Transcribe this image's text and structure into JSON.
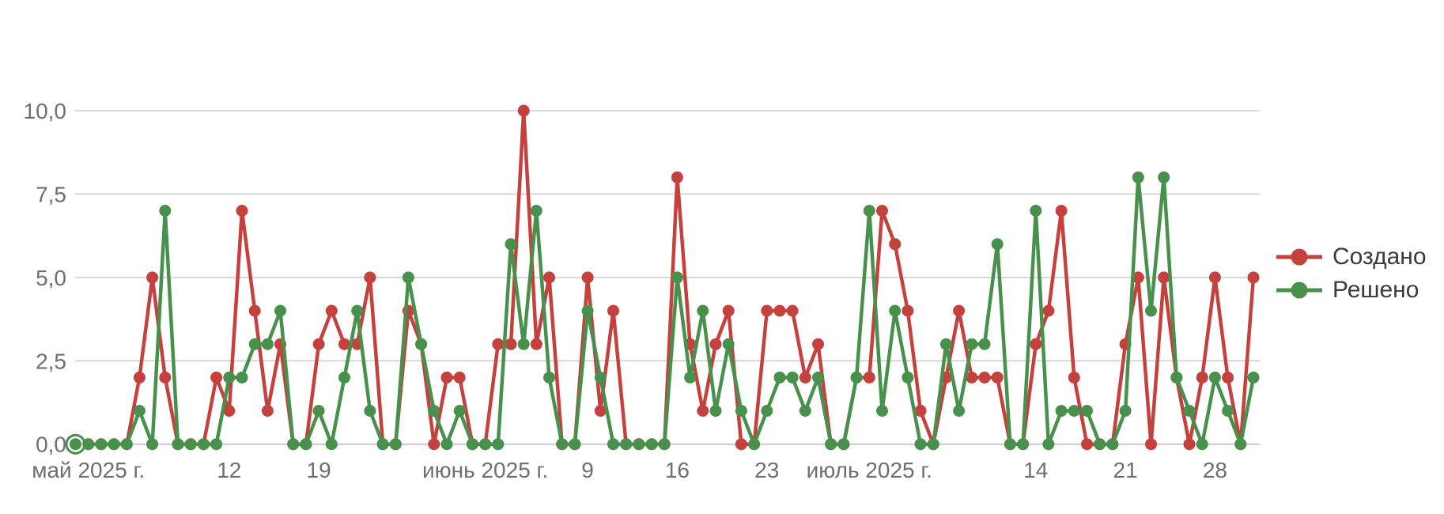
{
  "chart_data": {
    "type": "line",
    "title": "",
    "xlabel": "",
    "ylabel": "",
    "ylim": [
      0,
      10
    ],
    "grid": true,
    "legend_position": "right",
    "locale": "ru",
    "x_frequency": "daily",
    "x_start": "2025-04-30",
    "x_end": "2025-07-31",
    "dates": [
      "2025-04-30",
      "2025-05-01",
      "2025-05-02",
      "2025-05-03",
      "2025-05-04",
      "2025-05-05",
      "2025-05-06",
      "2025-05-07",
      "2025-05-08",
      "2025-05-09",
      "2025-05-10",
      "2025-05-11",
      "2025-05-12",
      "2025-05-13",
      "2025-05-14",
      "2025-05-15",
      "2025-05-16",
      "2025-05-17",
      "2025-05-18",
      "2025-05-19",
      "2025-05-20",
      "2025-05-21",
      "2025-05-22",
      "2025-05-23",
      "2025-05-24",
      "2025-05-25",
      "2025-05-26",
      "2025-05-27",
      "2025-05-28",
      "2025-05-29",
      "2025-05-30",
      "2025-05-31",
      "2025-06-01",
      "2025-06-02",
      "2025-06-03",
      "2025-06-04",
      "2025-06-05",
      "2025-06-06",
      "2025-06-07",
      "2025-06-08",
      "2025-06-09",
      "2025-06-10",
      "2025-06-11",
      "2025-06-12",
      "2025-06-13",
      "2025-06-14",
      "2025-06-15",
      "2025-06-16",
      "2025-06-17",
      "2025-06-18",
      "2025-06-19",
      "2025-06-20",
      "2025-06-21",
      "2025-06-22",
      "2025-06-23",
      "2025-06-24",
      "2025-06-25",
      "2025-06-26",
      "2025-06-27",
      "2025-06-28",
      "2025-06-29",
      "2025-06-30",
      "2025-07-01",
      "2025-07-02",
      "2025-07-03",
      "2025-07-04",
      "2025-07-05",
      "2025-07-06",
      "2025-07-07",
      "2025-07-08",
      "2025-07-09",
      "2025-07-10",
      "2025-07-11",
      "2025-07-12",
      "2025-07-13",
      "2025-07-14",
      "2025-07-15",
      "2025-07-16",
      "2025-07-17",
      "2025-07-18",
      "2025-07-19",
      "2025-07-20",
      "2025-07-21",
      "2025-07-22",
      "2025-07-23",
      "2025-07-24",
      "2025-07-25",
      "2025-07-26",
      "2025-07-27",
      "2025-07-28",
      "2025-07-29",
      "2025-07-30",
      "2025-07-31"
    ],
    "series": [
      {
        "name": "Создано",
        "color": "#c5413e",
        "values": [
          0,
          0,
          0,
          0,
          0,
          2,
          5,
          2,
          0,
          0,
          0,
          2,
          1,
          7,
          4,
          1,
          3,
          0,
          0,
          3,
          4,
          3,
          3,
          5,
          0,
          0,
          4,
          3,
          0,
          2,
          2,
          0,
          0,
          3,
          3,
          10,
          3,
          5,
          0,
          0,
          5,
          1,
          4,
          0,
          0,
          0,
          0,
          8,
          3,
          1,
          3,
          4,
          0,
          0,
          4,
          4,
          4,
          2,
          3,
          0,
          0,
          2,
          2,
          7,
          6,
          4,
          1,
          0,
          2,
          4,
          2,
          2,
          2,
          0,
          0,
          3,
          4,
          7,
          2,
          0,
          0,
          0,
          3,
          5,
          0,
          5,
          2,
          0,
          2,
          5,
          2,
          0,
          5
        ]
      },
      {
        "name": "Решено",
        "color": "#48914d",
        "values": [
          0,
          0,
          0,
          0,
          0,
          1,
          0,
          7,
          0,
          0,
          0,
          0,
          2,
          2,
          3,
          3,
          4,
          0,
          0,
          1,
          0,
          2,
          4,
          1,
          0,
          0,
          5,
          3,
          1,
          0,
          1,
          0,
          0,
          0,
          6,
          3,
          7,
          2,
          0,
          0,
          4,
          2,
          0,
          0,
          0,
          0,
          0,
          5,
          2,
          4,
          1,
          3,
          1,
          0,
          1,
          2,
          2,
          1,
          2,
          0,
          0,
          2,
          7,
          1,
          4,
          2,
          0,
          0,
          3,
          1,
          3,
          3,
          6,
          0,
          0,
          7,
          0,
          1,
          1,
          1,
          0,
          0,
          1,
          8,
          4,
          8,
          2,
          1,
          0,
          2,
          1,
          0,
          2
        ]
      }
    ],
    "yticks": {
      "values": [
        0,
        2.5,
        5,
        7.5,
        10
      ],
      "labels": [
        "0,0",
        "2,5",
        "5,0",
        "7,5",
        "10,0"
      ]
    },
    "xticks": [
      {
        "date": "2025-05-01",
        "label": "май 2025 г."
      },
      {
        "date": "2025-05-12",
        "label": "12"
      },
      {
        "date": "2025-05-19",
        "label": "19"
      },
      {
        "date": "2025-06-01",
        "label": "июнь 2025 г."
      },
      {
        "date": "2025-06-09",
        "label": "9"
      },
      {
        "date": "2025-06-16",
        "label": "16"
      },
      {
        "date": "2025-06-23",
        "label": "23"
      },
      {
        "date": "2025-07-01",
        "label": "июль 2025 г."
      },
      {
        "date": "2025-07-14",
        "label": "14"
      },
      {
        "date": "2025-07-21",
        "label": "21"
      },
      {
        "date": "2025-07-28",
        "label": "28"
      }
    ],
    "highlight": {
      "series": "Решено",
      "date": "2025-04-30",
      "value": 0,
      "style": "open-ring"
    }
  },
  "legend": {
    "items": [
      {
        "label": "Создано",
        "color": "#c5413e"
      },
      {
        "label": "Решено",
        "color": "#48914d"
      }
    ]
  },
  "colors": {
    "background": "#ffffff",
    "gridline": "#cccccc",
    "axis_line": "#c9c9c9",
    "axis_text": "#6f6f6f",
    "legend_text": "#3a3a3a"
  }
}
